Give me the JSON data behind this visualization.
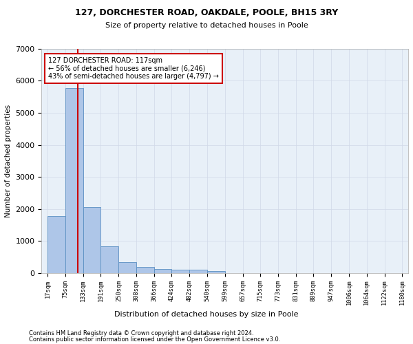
{
  "title1": "127, DORCHESTER ROAD, OAKDALE, POOLE, BH15 3RY",
  "title2": "Size of property relative to detached houses in Poole",
  "xlabel": "Distribution of detached houses by size in Poole",
  "ylabel": "Number of detached properties",
  "bar_edges": [
    17,
    75,
    133,
    191,
    250,
    308,
    366,
    424,
    482,
    540,
    599,
    657,
    715,
    773,
    831,
    889,
    947,
    1006,
    1064,
    1122,
    1180
  ],
  "bar_heights": [
    1780,
    5780,
    2060,
    820,
    340,
    185,
    120,
    100,
    90,
    65,
    0,
    0,
    0,
    0,
    0,
    0,
    0,
    0,
    0,
    0
  ],
  "bar_color": "#aec6e8",
  "bar_edgecolor": "#5a8fc2",
  "property_size": 117,
  "annotation_text": "127 DORCHESTER ROAD: 117sqm\n← 56% of detached houses are smaller (6,246)\n43% of semi-detached houses are larger (4,797) →",
  "annotation_box_color": "#ffffff",
  "annotation_box_edgecolor": "#cc0000",
  "vline_color": "#cc0000",
  "ylim": [
    0,
    7000
  ],
  "grid_color": "#d0d8e8",
  "background_color": "#e8f0f8",
  "tick_labels": [
    "17sqm",
    "75sqm",
    "133sqm",
    "191sqm",
    "250sqm",
    "308sqm",
    "366sqm",
    "424sqm",
    "482sqm",
    "540sqm",
    "599sqm",
    "657sqm",
    "715sqm",
    "773sqm",
    "831sqm",
    "889sqm",
    "947sqm",
    "1006sqm",
    "1064sqm",
    "1122sqm",
    "1180sqm"
  ],
  "footnote1": "Contains HM Land Registry data © Crown copyright and database right 2024.",
  "footnote2": "Contains public sector information licensed under the Open Government Licence v3.0."
}
